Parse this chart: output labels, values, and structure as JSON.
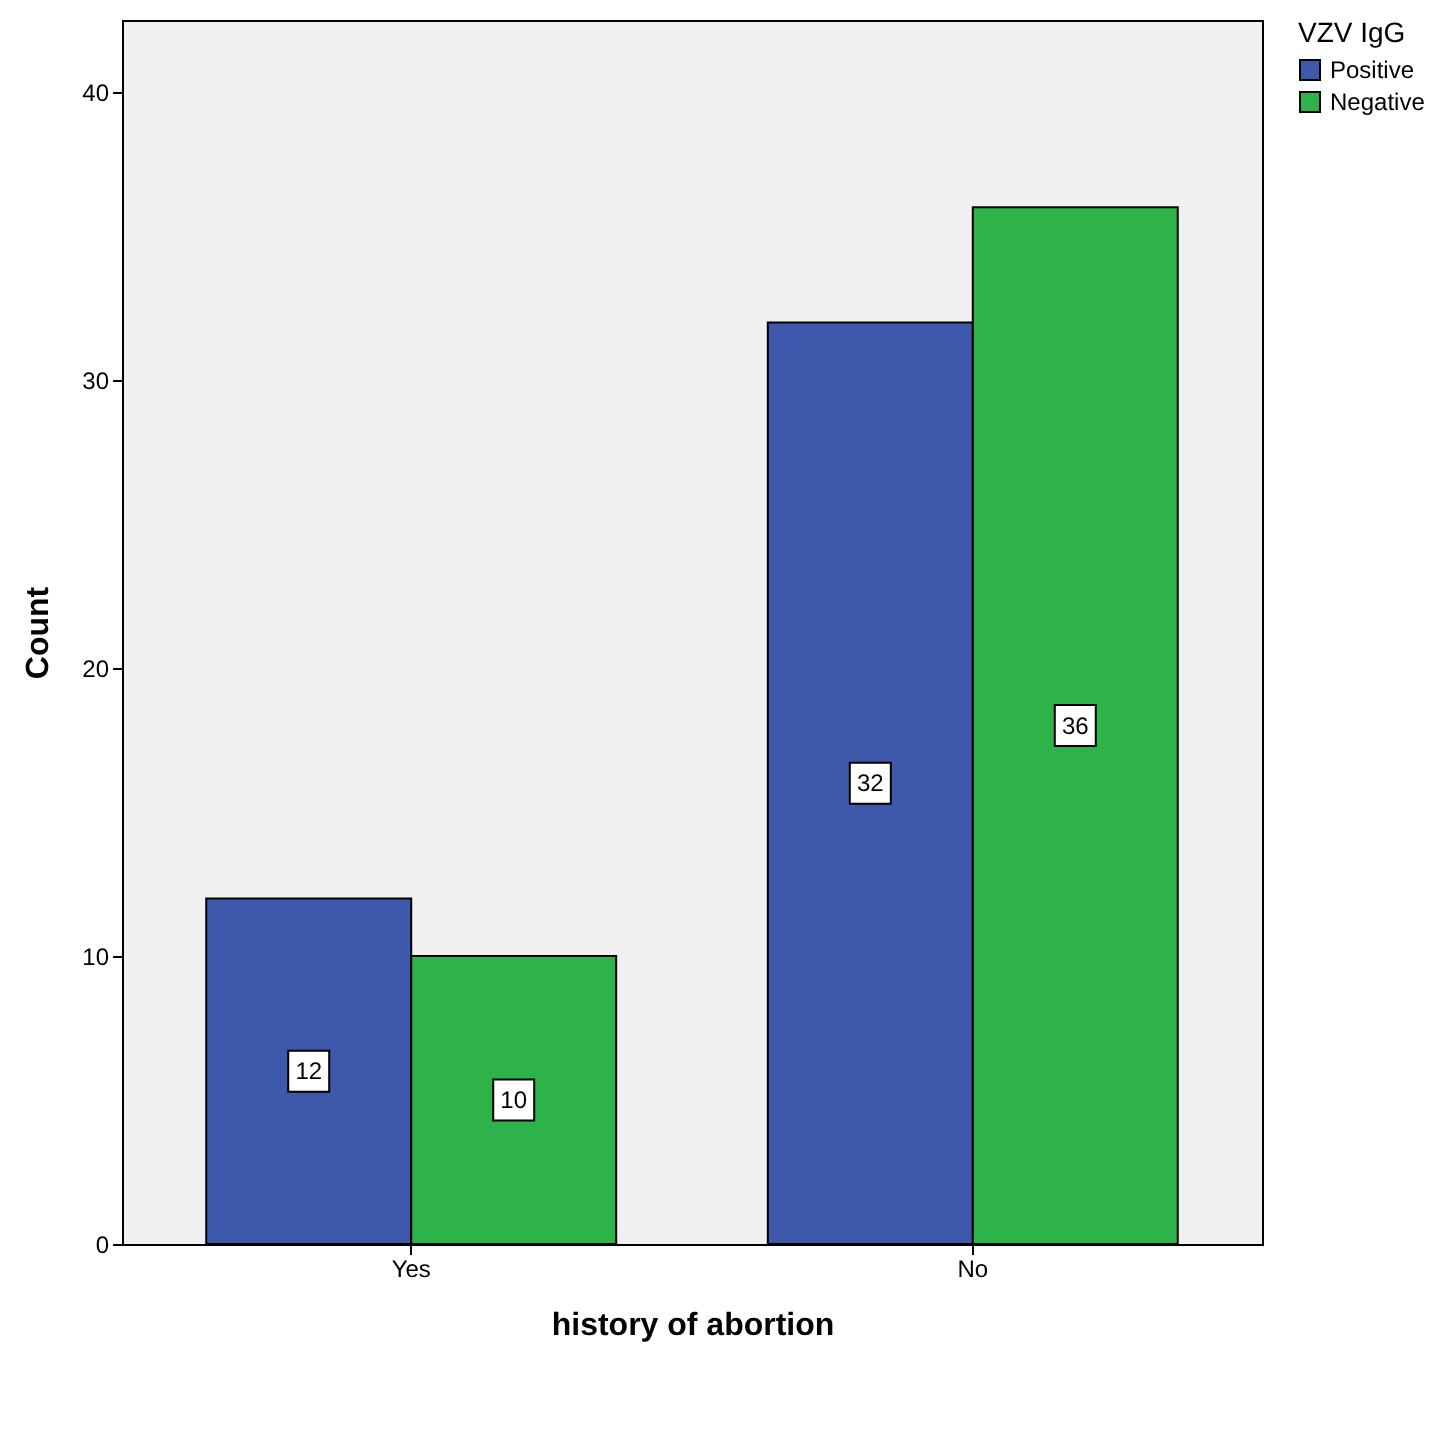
{
  "chart_data": {
    "type": "bar",
    "xlabel": "history of abortion",
    "ylabel": "Count",
    "legend_title": "VZV IgG",
    "categories": [
      "Yes",
      "No"
    ],
    "series": [
      {
        "name": "Positive",
        "color": "#3e58ac",
        "values": [
          12,
          32
        ]
      },
      {
        "name": "Negative",
        "color": "#2db34a",
        "values": [
          10,
          36
        ]
      }
    ],
    "ylim": [
      0,
      42.5
    ],
    "yticks": [
      0,
      10,
      20,
      30,
      40
    ],
    "grid": false,
    "legend": "top right",
    "data_labels": true
  }
}
